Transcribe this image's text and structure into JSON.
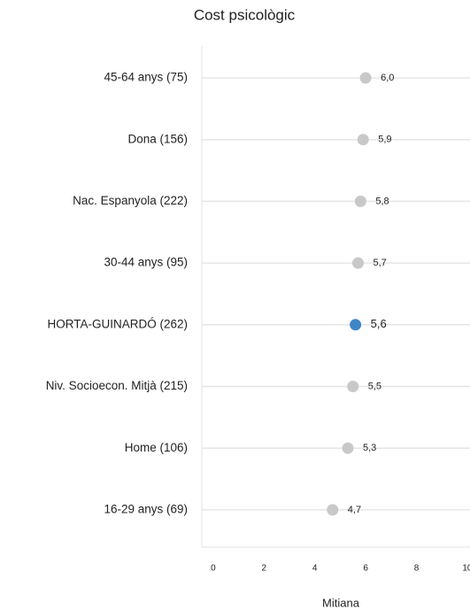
{
  "chart_data": {
    "type": "dot",
    "title": "Cost psicològic",
    "xlabel": "Mitiana",
    "categories": [
      "45-64 anys (75)",
      "Dona (156)",
      "Nac. Espanyola (222)",
      "30-44 anys (95)",
      "HORTA-GUINARDÓ (262)",
      "Niv. Socioecon. Mitjà (215)",
      "Home (106)",
      "16-29 anys (69)"
    ],
    "values": [
      6.0,
      5.9,
      5.8,
      5.7,
      5.6,
      5.5,
      5.3,
      4.7
    ],
    "value_labels": [
      "6,0",
      "5,9",
      "5,8",
      "5,7",
      "5,6",
      "5,5",
      "5,3",
      "4,7"
    ],
    "color": "#c8c8c8",
    "colors": [
      "#c8c8c8",
      "#c8c8c8",
      "#c8c8c8",
      "#c8c8c8",
      "#3f86c4",
      "#c8c8c8",
      "#c8c8c8",
      "#c8c8c8"
    ],
    "xlim": [
      -0.45,
      10.45
    ],
    "xticks": [
      0,
      2,
      4,
      6,
      8,
      10
    ],
    "grid": true
  }
}
